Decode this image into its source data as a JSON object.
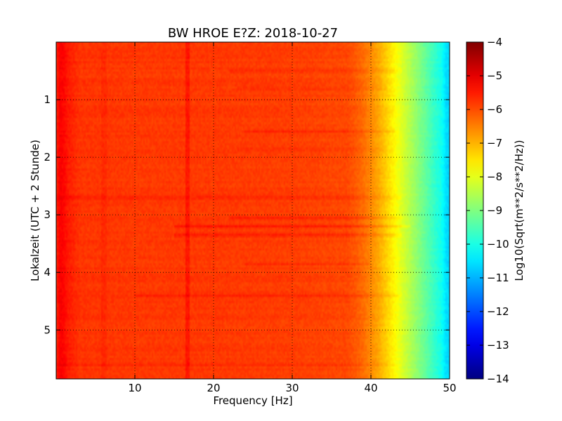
{
  "chart_data": {
    "type": "heatmap",
    "title": "BW HROE E?Z: 2018-10-27",
    "xlabel": "Frequency [Hz]",
    "ylabel": "Lokalzeit (UTC + 2 Stunde)",
    "xlim": [
      0,
      50
    ],
    "ylim": [
      0,
      5.85
    ],
    "y_inverted": true,
    "xticks": [
      10,
      20,
      30,
      40,
      50
    ],
    "yticks": [
      1,
      2,
      3,
      4,
      5
    ],
    "grid": true,
    "colormap": "jet",
    "colorbar": {
      "label": "Log10(Sqrt(m**2/s**2/Hz))",
      "range": [
        -14,
        -4
      ],
      "ticks": [
        -4,
        -5,
        -6,
        -7,
        -8,
        -9,
        -10,
        -11,
        -12,
        -13,
        -14
      ]
    },
    "spectral_profile": {
      "frequency_hz": [
        0,
        0.5,
        1,
        1.5,
        3,
        10,
        20,
        30,
        37,
        38,
        39,
        40,
        41,
        42,
        43,
        44,
        45,
        46,
        47,
        48,
        49,
        49.6,
        50
      ],
      "level": [
        -5.6,
        -5.2,
        -5.3,
        -5.5,
        -5.75,
        -5.8,
        -5.8,
        -5.85,
        -5.95,
        -6.1,
        -6.3,
        -6.6,
        -6.9,
        -7.3,
        -7.7,
        -8.1,
        -8.5,
        -8.9,
        -9.3,
        -9.7,
        -10.1,
        -10.6,
        -10.6
      ]
    },
    "peaks": [
      {
        "frequency_hz": 16.7,
        "delta": 0.35
      },
      {
        "frequency_hz": 6.1,
        "delta": 0.12
      }
    ],
    "horizontal_bands": [
      {
        "time_h": 0.5,
        "fmin": 22,
        "fmax": 44,
        "delta": 0.25
      },
      {
        "time_h": 0.8,
        "fmin": 23,
        "fmax": 42,
        "delta": 0.2
      },
      {
        "time_h": 1.55,
        "fmin": 24,
        "fmax": 43,
        "delta": 0.25
      },
      {
        "time_h": 1.85,
        "fmin": 23,
        "fmax": 42,
        "delta": 0.15
      },
      {
        "time_h": 2.7,
        "fmin": 0,
        "fmax": 44,
        "delta": 0.3
      },
      {
        "time_h": 3.05,
        "fmin": 22,
        "fmax": 44,
        "delta": 0.3
      },
      {
        "time_h": 3.2,
        "fmin": 15,
        "fmax": 45,
        "delta": 0.4
      },
      {
        "time_h": 3.35,
        "fmin": 15,
        "fmax": 44,
        "delta": 0.35
      },
      {
        "time_h": 3.85,
        "fmin": 24,
        "fmax": 40,
        "delta": 0.25
      },
      {
        "time_h": 4.4,
        "fmin": 10,
        "fmax": 44,
        "delta": 0.25
      },
      {
        "time_h": 5.6,
        "fmin": 0,
        "fmax": 43,
        "delta": 0.2
      }
    ]
  }
}
